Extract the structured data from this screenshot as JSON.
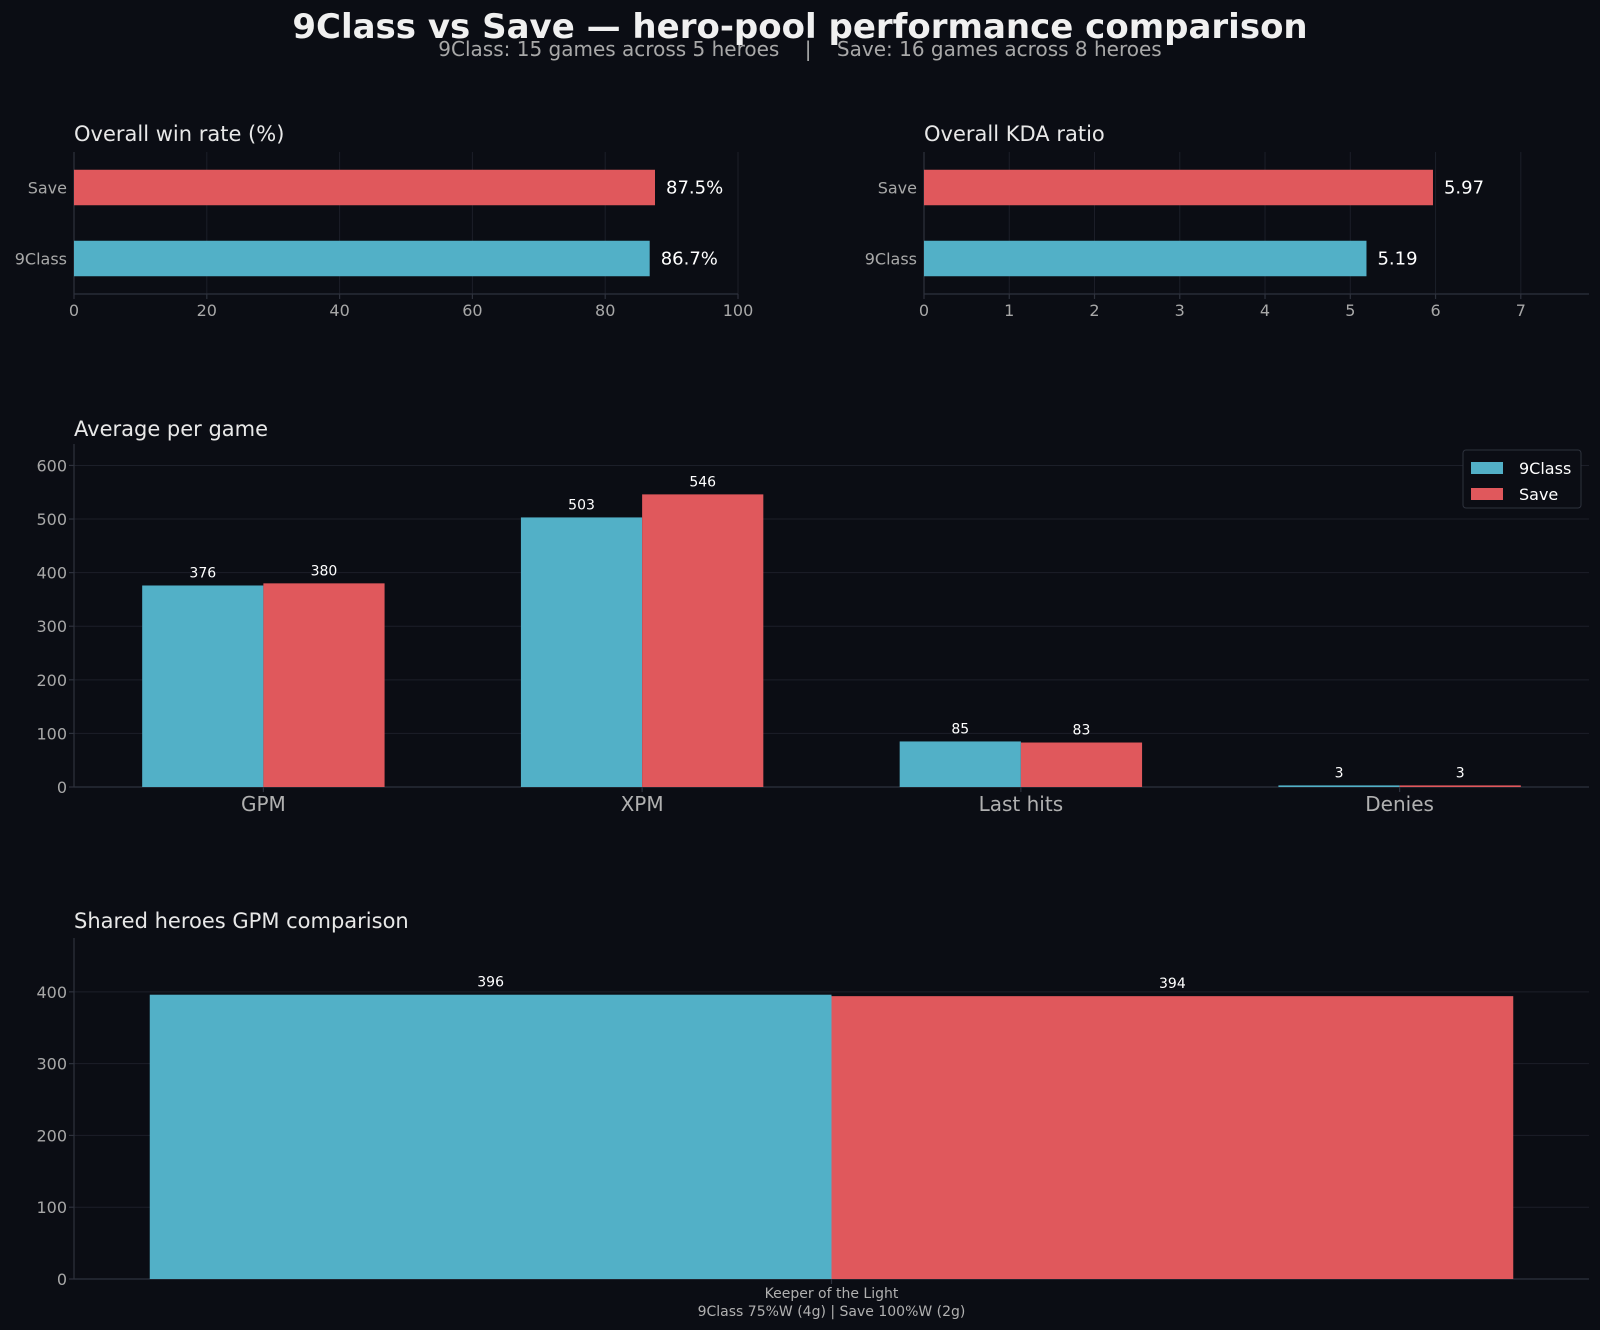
{
  "title": "9Class vs Save — hero-pool performance comparison",
  "subtitle": "9Class: 15 games across 5 heroes    |    Save: 16 games across 8 heroes",
  "colors": {
    "9Class": "#52b0c7",
    "Save": "#e0585c",
    "background": "#0b0d14"
  },
  "chart_data": [
    {
      "type": "bar",
      "orientation": "horizontal",
      "title": "Overall win rate (%)",
      "categories": [
        "Save",
        "9Class"
      ],
      "values": [
        87.5,
        86.7
      ],
      "value_labels": [
        "87.5%",
        "86.7%"
      ],
      "xlim": [
        0,
        100
      ],
      "xticks": [
        0,
        20,
        40,
        60,
        80,
        100
      ],
      "grid": true
    },
    {
      "type": "bar",
      "orientation": "horizontal",
      "title": "Overall KDA ratio",
      "categories": [
        "Save",
        "9Class"
      ],
      "values": [
        5.97,
        5.19
      ],
      "value_labels": [
        "5.97",
        "5.19"
      ],
      "xlim": [
        0,
        7.8
      ],
      "xticks": [
        0,
        1,
        2,
        3,
        4,
        5,
        6,
        7
      ],
      "grid": true
    },
    {
      "type": "bar",
      "orientation": "vertical",
      "title": "Average per game",
      "categories": [
        "GPM",
        "XPM",
        "Last hits",
        "Denies"
      ],
      "series": [
        {
          "name": "9Class",
          "values": [
            376,
            503,
            85,
            3
          ]
        },
        {
          "name": "Save",
          "values": [
            380,
            546,
            83,
            3
          ]
        }
      ],
      "ylim": [
        0,
        640
      ],
      "yticks": [
        0,
        100,
        200,
        300,
        400,
        500,
        600
      ],
      "legend": "top-right",
      "grid": true
    },
    {
      "type": "bar",
      "orientation": "vertical",
      "title": "Shared heroes GPM comparison",
      "categories": [
        "Keeper of the Light"
      ],
      "category_sublabels": [
        "9Class 75%W (4g)  |  Save 100%W (2g)"
      ],
      "series": [
        {
          "name": "9Class",
          "values": [
            396
          ]
        },
        {
          "name": "Save",
          "values": [
            394
          ]
        }
      ],
      "ylim": [
        0,
        475
      ],
      "yticks": [
        0,
        100,
        200,
        300,
        400
      ],
      "grid": true
    }
  ]
}
